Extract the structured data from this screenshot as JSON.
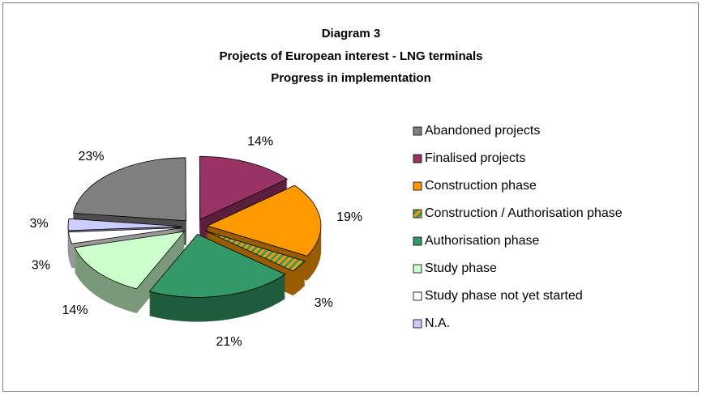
{
  "chart_data": {
    "type": "pie3d",
    "title": [
      "Diagram 3",
      "Projects of European interest - LNG terminals",
      "Progress in implementation"
    ],
    "categories": [
      "Abandoned projects",
      "Finalised projects",
      "Construction phase",
      "Construction / Authorisation phase",
      "Authorisation phase",
      "Study phase",
      "Study phase not yet started",
      "N.A."
    ],
    "values": [
      23,
      14,
      19,
      3,
      21,
      14,
      3,
      3
    ],
    "value_labels": [
      "23%",
      "14%",
      "19%",
      "3%",
      "21%",
      "14%",
      "3%",
      "3%"
    ],
    "colors": [
      "#808080",
      "#993366",
      "#ff9900",
      "#ff9900",
      "#339966",
      "#ccffcc",
      "#ffffff",
      "#ccccff"
    ],
    "hatched": [
      false,
      false,
      false,
      true,
      false,
      false,
      false,
      false
    ],
    "hatch_color": "#339966",
    "start_angle": 277,
    "legend": "right"
  }
}
